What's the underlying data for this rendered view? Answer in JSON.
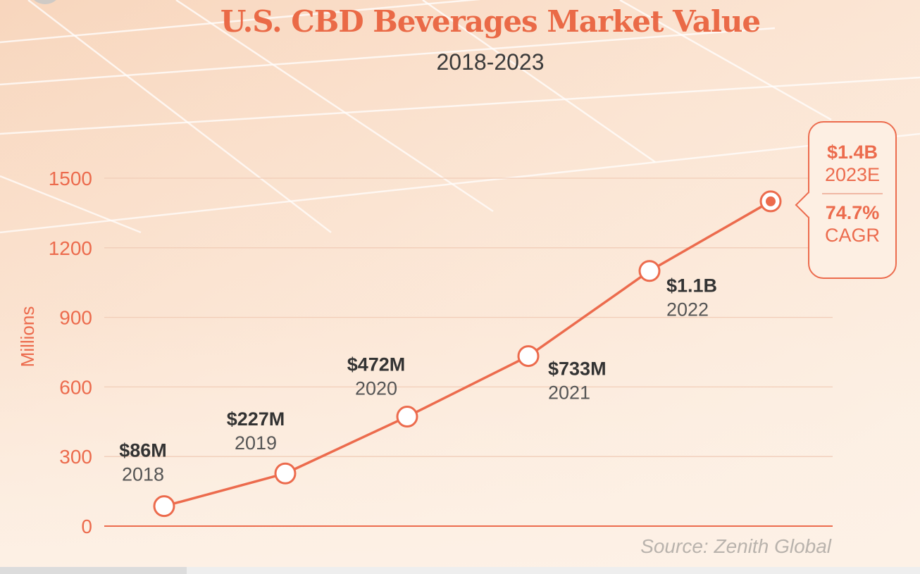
{
  "chart_data": {
    "type": "line",
    "title": "U.S. CBD Beverages Market Value",
    "subtitle": "2018-2023",
    "ylabel": "Millions",
    "ylim": [
      0,
      1500
    ],
    "yticks": [
      0,
      300,
      600,
      900,
      1200,
      1500
    ],
    "grid": true,
    "series": [
      {
        "values": [
          86,
          227,
          472,
          733,
          1100,
          1400
        ],
        "x": [
          "2018",
          "2019",
          "2020",
          "2021",
          "2022",
          "2023E"
        ]
      }
    ],
    "points": [
      {
        "value_label": "$86M",
        "year_label": "2018"
      },
      {
        "value_label": "$227M",
        "year_label": "2019"
      },
      {
        "value_label": "$472M",
        "year_label": "2020"
      },
      {
        "value_label": "$733M",
        "year_label": "2021"
      },
      {
        "value_label": "$1.1B",
        "year_label": "2022"
      },
      {
        "value_label": "$1.4B",
        "year_label": "2023E"
      }
    ],
    "callout": {
      "value": "$1.4B",
      "year": "2023E",
      "cagr_value": "74.7%",
      "cagr_label": "CAGR"
    },
    "source": "Source: Zenith Global",
    "colors": {
      "accent": "#ec6b4d",
      "line": "#ec6b4d",
      "text_dark": "#333333",
      "text_mid": "#555555",
      "source_text": "#b9b3ad",
      "background": "#fdeee0"
    }
  }
}
